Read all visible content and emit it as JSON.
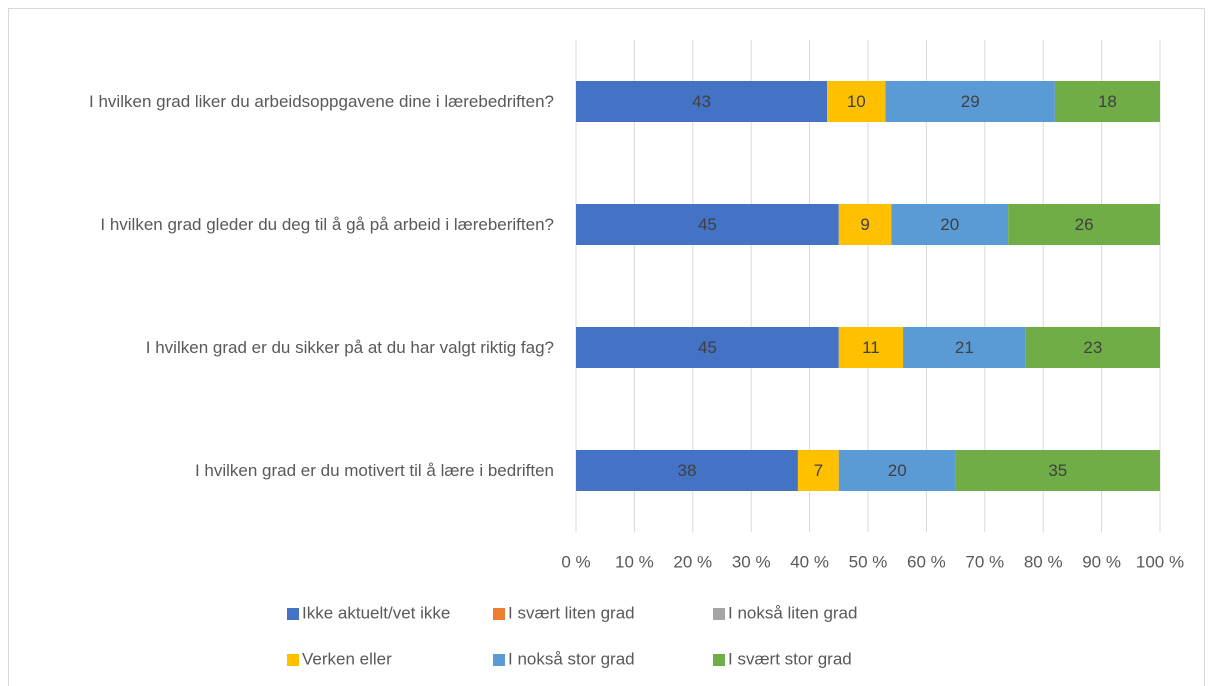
{
  "chart_data": {
    "type": "stacked-bar",
    "categories": [
      "I hvilken grad liker du arbeidsoppgavene dine i lærebedriften?",
      "I hvilken grad gleder du deg til å gå på arbeid i læreberiften?",
      "I hvilken grad er du sikker på at du har valgt riktig fag?",
      "I hvilken grad er du motivert til å lære i bedriften"
    ],
    "series": [
      {
        "name": "Ikke aktuelt/vet ikke",
        "color": "#4472c4",
        "values": [
          43,
          45,
          45,
          38
        ]
      },
      {
        "name": "I svært liten grad",
        "color": "#ed7d31",
        "values": [
          0,
          0,
          0,
          0
        ]
      },
      {
        "name": "I nokså liten grad",
        "color": "#a5a5a5",
        "values": [
          0,
          0,
          0,
          0
        ]
      },
      {
        "name": "Verken eller",
        "color": "#ffc000",
        "values": [
          10,
          9,
          11,
          7
        ]
      },
      {
        "name": "I nokså stor grad",
        "color": "#5b9bd5",
        "values": [
          29,
          20,
          21,
          20
        ]
      },
      {
        "name": "I svært stor grad",
        "color": "#70ad47",
        "values": [
          18,
          26,
          23,
          35
        ]
      }
    ],
    "xlim": [
      0,
      100
    ],
    "xticks": [
      {
        "value": 0,
        "label": "0 %"
      },
      {
        "value": 10,
        "label": "10 %"
      },
      {
        "value": 20,
        "label": "20 %"
      },
      {
        "value": 30,
        "label": "30 %"
      },
      {
        "value": 40,
        "label": "40 %"
      },
      {
        "value": 50,
        "label": "50 %"
      },
      {
        "value": 60,
        "label": "60 %"
      },
      {
        "value": 70,
        "label": "70 %"
      },
      {
        "value": 80,
        "label": "80 %"
      },
      {
        "value": 90,
        "label": "90 %"
      },
      {
        "value": 100,
        "label": "100 %"
      }
    ],
    "grid": true,
    "legend": "bottom"
  }
}
